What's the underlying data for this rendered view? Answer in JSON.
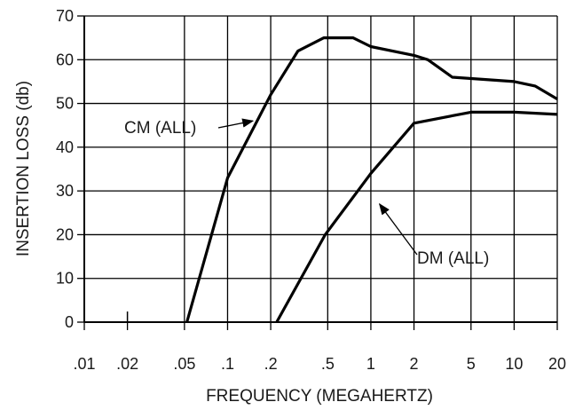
{
  "chart_data": {
    "type": "line",
    "xlabel": "FREQUENCY (MEGAHERTZ)",
    "ylabel": "INSERTION LOSS (db)",
    "x_scale": "log",
    "xlim": [
      0.01,
      20
    ],
    "ylim": [
      0,
      70
    ],
    "grid": true,
    "y_ticks": [
      0,
      10,
      20,
      30,
      40,
      50,
      60,
      70
    ],
    "x_ticks": [
      {
        "value": 0.01,
        "label": ".01"
      },
      {
        "value": 0.02,
        "label": ".02"
      },
      {
        "value": 0.05,
        "label": ".05"
      },
      {
        "value": 0.1,
        "label": ".1"
      },
      {
        "value": 0.2,
        "label": ".2"
      },
      {
        "value": 0.5,
        "label": ".5"
      },
      {
        "value": 1,
        "label": "1"
      },
      {
        "value": 2,
        "label": "2"
      },
      {
        "value": 5,
        "label": "5"
      },
      {
        "value": 10,
        "label": "10"
      },
      {
        "value": 20,
        "label": "20"
      }
    ],
    "series": [
      {
        "name": "CM (ALL)",
        "color": "#000000",
        "points": [
          [
            0.052,
            0
          ],
          [
            0.1,
            33
          ],
          [
            0.2,
            52
          ],
          [
            0.31,
            62
          ],
          [
            0.47,
            65
          ],
          [
            0.75,
            65
          ],
          [
            1.0,
            63
          ],
          [
            2.0,
            61
          ],
          [
            2.5,
            60
          ],
          [
            3.7,
            56
          ],
          [
            10,
            55
          ],
          [
            14,
            54
          ],
          [
            20,
            51
          ]
        ]
      },
      {
        "name": "DM (ALL)",
        "color": "#000000",
        "points": [
          [
            0.22,
            0
          ],
          [
            0.48,
            20
          ],
          [
            1.0,
            34
          ],
          [
            2.0,
            45.5
          ],
          [
            5,
            48
          ],
          [
            10,
            48
          ],
          [
            20,
            47.5
          ]
        ]
      }
    ],
    "annotations": [
      {
        "text": "CM (ALL)",
        "series": "CM (ALL)",
        "arrow_to": [
          0.15,
          46
        ]
      },
      {
        "text": "DM (ALL)",
        "series": "DM (ALL)",
        "arrow_to": [
          1.15,
          27
        ]
      }
    ]
  }
}
